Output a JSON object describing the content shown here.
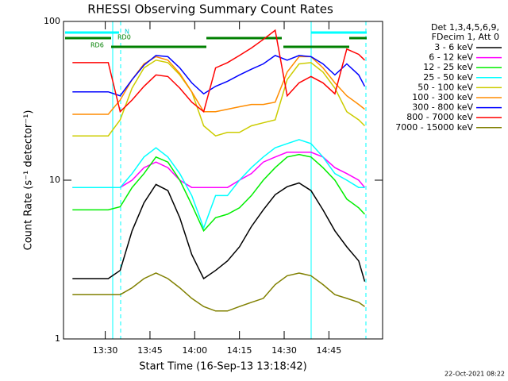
{
  "chart_data": {
    "type": "line",
    "title": "RHESSI Observing Summary Count Rates",
    "xlabel": "Start Time (16-Sep-13 13:18:42)",
    "ylabel": "Count Rate (s⁻¹ detector⁻¹)",
    "legend_header": [
      "Det 1,3,4,5,6,9,",
      "FDecim 1, Att 0"
    ],
    "annotations": [
      "N",
      "RD0",
      "RD6"
    ],
    "footer": "22-Oct-2021 08:22",
    "log_y": true,
    "legend": "right",
    "xlim": [
      "13:16",
      "15:03"
    ],
    "xticks": [
      "13:30",
      "13:45",
      "14:00",
      "14:15",
      "14:30",
      "14:45"
    ],
    "ylim": [
      1,
      100
    ],
    "yticks": [
      1,
      10,
      100
    ],
    "x": [
      "13:19",
      "13:23",
      "13:27",
      "13:31",
      "13:35",
      "13:39",
      "13:43",
      "13:47",
      "13:51",
      "13:55",
      "13:59",
      "14:03",
      "14:07",
      "14:11",
      "14:15",
      "14:19",
      "14:23",
      "14:27",
      "14:31",
      "14:35",
      "14:39",
      "14:43",
      "14:47",
      "14:51",
      "14:55",
      "14:57"
    ],
    "series": [
      {
        "name": "3 - 6 keV",
        "color": "#000000",
        "values": [
          2.4,
          2.4,
          2.4,
          2.4,
          2.7,
          4.8,
          7.2,
          9.4,
          8.6,
          5.8,
          3.4,
          2.4,
          2.7,
          3.1,
          3.8,
          5.1,
          6.5,
          8.1,
          9.1,
          9.6,
          8.6,
          6.5,
          4.8,
          3.8,
          3.1,
          2.3
        ]
      },
      {
        "name": "6 - 12 keV",
        "color": "#ff00ff",
        "values": [
          9,
          9,
          9,
          9,
          9,
          10,
          12,
          13,
          12,
          10,
          9,
          9,
          9,
          9,
          10,
          11,
          13,
          14,
          15,
          15,
          15,
          14,
          12,
          11,
          10,
          9
        ]
      },
      {
        "name": "12 - 25 keV",
        "color": "#00ee00",
        "values": [
          6.5,
          6.5,
          6.5,
          6.5,
          6.8,
          9,
          11,
          14,
          13,
          10,
          7,
          4.8,
          5.8,
          6.1,
          6.7,
          8,
          10,
          12,
          14,
          14.5,
          14,
          12,
          10,
          7.6,
          6.7,
          6.1
        ]
      },
      {
        "name": "25 - 50 keV",
        "color": "#00ffff",
        "values": [
          9,
          9,
          9,
          9,
          9,
          11,
          14,
          16,
          14,
          11,
          8,
          5,
          8,
          8,
          10,
          12,
          14,
          16,
          17,
          18,
          17,
          14,
          11,
          10,
          9,
          9
        ]
      },
      {
        "name": "50 - 100 keV",
        "color": "#cccc00",
        "values": [
          19,
          19,
          19,
          19,
          24,
          38,
          51,
          57,
          55,
          46,
          36,
          22,
          19,
          20,
          20,
          22,
          23,
          24,
          43,
          54,
          55,
          48,
          38,
          27,
          24,
          22
        ]
      },
      {
        "name": "100 - 300 keV",
        "color": "#ff8c00",
        "values": [
          26,
          26,
          26,
          26,
          32,
          43,
          54,
          60,
          57,
          47,
          36,
          27,
          27,
          28,
          29,
          30,
          30,
          31,
          48,
          60,
          60,
          51,
          41,
          34,
          30,
          28
        ]
      },
      {
        "name": "300 - 800 keV",
        "color": "#0000ff",
        "values": [
          36,
          36,
          36,
          36,
          34,
          43,
          53,
          61,
          60,
          51,
          41,
          35,
          39,
          42,
          46,
          50,
          54,
          61,
          57,
          61,
          60,
          54,
          46,
          54,
          46,
          39
        ]
      },
      {
        "name": "800 - 7000 keV",
        "color": "#ff0000",
        "values": [
          55,
          55,
          55,
          55,
          27,
          32,
          39,
          46,
          45,
          38,
          31,
          27,
          51,
          55,
          61,
          68,
          77,
          88,
          34,
          41,
          45,
          41,
          35,
          67,
          62,
          57
        ]
      },
      {
        "name": "7000 - 15000 keV",
        "color": "#808000",
        "values": [
          1.9,
          1.9,
          1.9,
          1.9,
          1.9,
          2.1,
          2.4,
          2.6,
          2.4,
          2.1,
          1.8,
          1.6,
          1.5,
          1.5,
          1.6,
          1.7,
          1.8,
          2.2,
          2.5,
          2.6,
          2.5,
          2.2,
          1.9,
          1.8,
          1.7,
          1.6
        ]
      }
    ]
  }
}
